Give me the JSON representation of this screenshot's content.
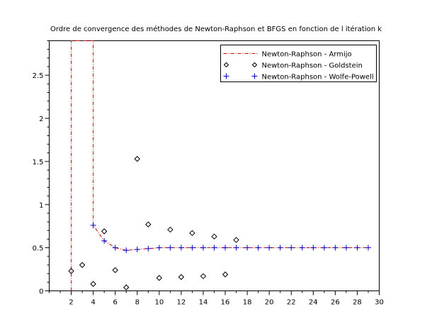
{
  "chart_data": {
    "type": "line",
    "title": "Ordre de convergence des méthodes de Newton-Raphson et BFGS en fonction de l itération k",
    "xlabel": "",
    "ylabel": "",
    "xlim": [
      0,
      30
    ],
    "ylim": [
      0,
      2.9
    ],
    "xticks": [
      2,
      4,
      6,
      8,
      10,
      12,
      14,
      16,
      18,
      20,
      22,
      24,
      26,
      28,
      30
    ],
    "yticks": [
      0,
      0.5,
      1,
      1.5,
      2,
      2.5
    ],
    "grid": false,
    "legend_position": "top-right",
    "series": [
      {
        "name": "Newton-Raphson - Armijo",
        "style": "dash-dot line",
        "color": "#cc0000",
        "x": [
          2,
          2,
          4,
          4,
          5,
          6,
          7,
          8,
          9,
          10,
          11,
          12,
          13,
          14,
          15,
          16,
          17,
          18,
          19,
          20,
          21,
          22,
          23,
          24,
          25,
          26,
          27,
          28,
          29
        ],
        "y": [
          0,
          2.9,
          2.9,
          0.76,
          0.58,
          0.5,
          0.47,
          0.48,
          0.49,
          0.5,
          0.5,
          0.5,
          0.5,
          0.5,
          0.5,
          0.5,
          0.5,
          0.5,
          0.5,
          0.5,
          0.5,
          0.5,
          0.5,
          0.5,
          0.5,
          0.5,
          0.5,
          0.5,
          0.5
        ]
      },
      {
        "name": "Newton-Raphson - Goldstein",
        "style": "diamond markers",
        "color": "#000000",
        "x": [
          2,
          3,
          4,
          5,
          6,
          7,
          8,
          9,
          10,
          11,
          12,
          13,
          14,
          15,
          16,
          17
        ],
        "y": [
          0.23,
          0.3,
          0.08,
          0.69,
          0.24,
          0.04,
          1.53,
          0.77,
          0.15,
          0.71,
          0.16,
          0.67,
          0.17,
          0.63,
          0.19,
          0.59
        ]
      },
      {
        "name": "Newton-Raphson - Wolfe-Powell",
        "style": "plus markers",
        "color": "#0000cc",
        "x": [
          4,
          5,
          6,
          7,
          8,
          9,
          10,
          11,
          12,
          13,
          14,
          15,
          16,
          17,
          18,
          19,
          20,
          21,
          22,
          23,
          24,
          25,
          26,
          27,
          28,
          29
        ],
        "y": [
          0.76,
          0.58,
          0.5,
          0.47,
          0.48,
          0.49,
          0.5,
          0.5,
          0.5,
          0.5,
          0.5,
          0.5,
          0.5,
          0.5,
          0.5,
          0.5,
          0.5,
          0.5,
          0.5,
          0.5,
          0.5,
          0.5,
          0.5,
          0.5,
          0.5,
          0.5
        ]
      }
    ]
  }
}
